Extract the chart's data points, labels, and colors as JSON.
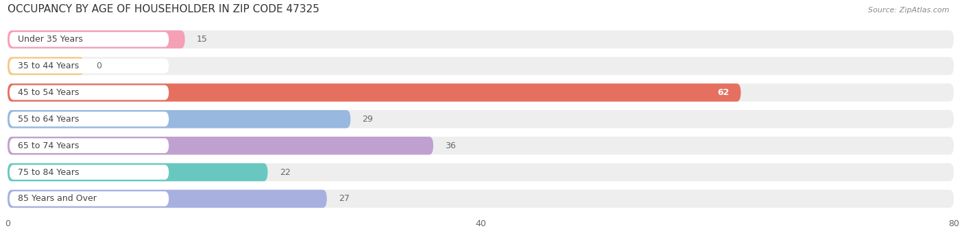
{
  "title": "OCCUPANCY BY AGE OF HOUSEHOLDER IN ZIP CODE 47325",
  "source": "Source: ZipAtlas.com",
  "categories": [
    "Under 35 Years",
    "35 to 44 Years",
    "45 to 54 Years",
    "55 to 64 Years",
    "65 to 74 Years",
    "75 to 84 Years",
    "85 Years and Over"
  ],
  "values": [
    15,
    0,
    62,
    29,
    36,
    22,
    27
  ],
  "bar_colors": [
    "#f5a0b5",
    "#f5c98a",
    "#e57060",
    "#98b8e0",
    "#c0a0d0",
    "#68c8c0",
    "#a8b0e0"
  ],
  "xlim": [
    0,
    80
  ],
  "xticks": [
    0,
    40,
    80
  ],
  "background_color": "#ffffff",
  "bar_bg_color": "#eeeeee",
  "title_fontsize": 11,
  "source_fontsize": 8,
  "label_fontsize": 9,
  "value_fontsize": 9
}
